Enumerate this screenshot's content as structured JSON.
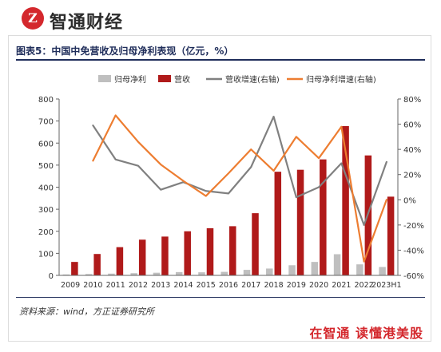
{
  "header": {
    "logo_text": "Z",
    "brand_name": "智通财经"
  },
  "figure": {
    "title": "图表5：中国中免营收及归母净利表现（亿元，%）",
    "source": "资料来源：wind，方正证券研究所"
  },
  "footer": {
    "slogan": "在智通  读懂港美股"
  },
  "colors": {
    "net_profit_bar": "#bfbfbf",
    "revenue_bar": "#b01a1a",
    "revenue_growth_line": "#808080",
    "net_profit_growth_line": "#ed7d31",
    "brand_red": "#d4282d"
  },
  "chart_data": {
    "type": "bar",
    "categories": [
      "2009",
      "2010",
      "2011",
      "2012",
      "2013",
      "2014",
      "2015",
      "2016",
      "2017",
      "2018",
      "2019",
      "2020",
      "2021",
      "2022",
      "2023H1"
    ],
    "series": [
      {
        "name": "归母净利",
        "kind": "bar",
        "axis": "left",
        "values": [
          4,
          6,
          8,
          10,
          12,
          15,
          14,
          16,
          25,
          31,
          46,
          61,
          96,
          50,
          38
        ]
      },
      {
        "name": "营收",
        "kind": "bar",
        "axis": "left",
        "values": [
          61,
          97,
          128,
          162,
          176,
          200,
          214,
          223,
          282,
          470,
          479,
          526,
          677,
          544,
          357
        ]
      },
      {
        "name": "营收增速(右轴)",
        "kind": "line",
        "axis": "right",
        "values": [
          null,
          59,
          32,
          27,
          8,
          14,
          7,
          5,
          26,
          66,
          2,
          10,
          29,
          -20,
          30
        ]
      },
      {
        "name": "归母净利增速(右轴)",
        "kind": "line",
        "axis": "right",
        "values": [
          null,
          31,
          67,
          46,
          28,
          15,
          3,
          21,
          40,
          23,
          50,
          33,
          58,
          -49,
          0
        ]
      }
    ],
    "left_axis": {
      "min": 0,
      "max": 800,
      "ticks": [
        0,
        100,
        200,
        300,
        400,
        500,
        600,
        700,
        800
      ]
    },
    "right_axis": {
      "min": -60,
      "max": 80,
      "ticks": [
        "-60%",
        "-40%",
        "-20%",
        "0%",
        "20%",
        "40%",
        "60%",
        "80%"
      ]
    },
    "legend_position": "top",
    "grid": false
  }
}
